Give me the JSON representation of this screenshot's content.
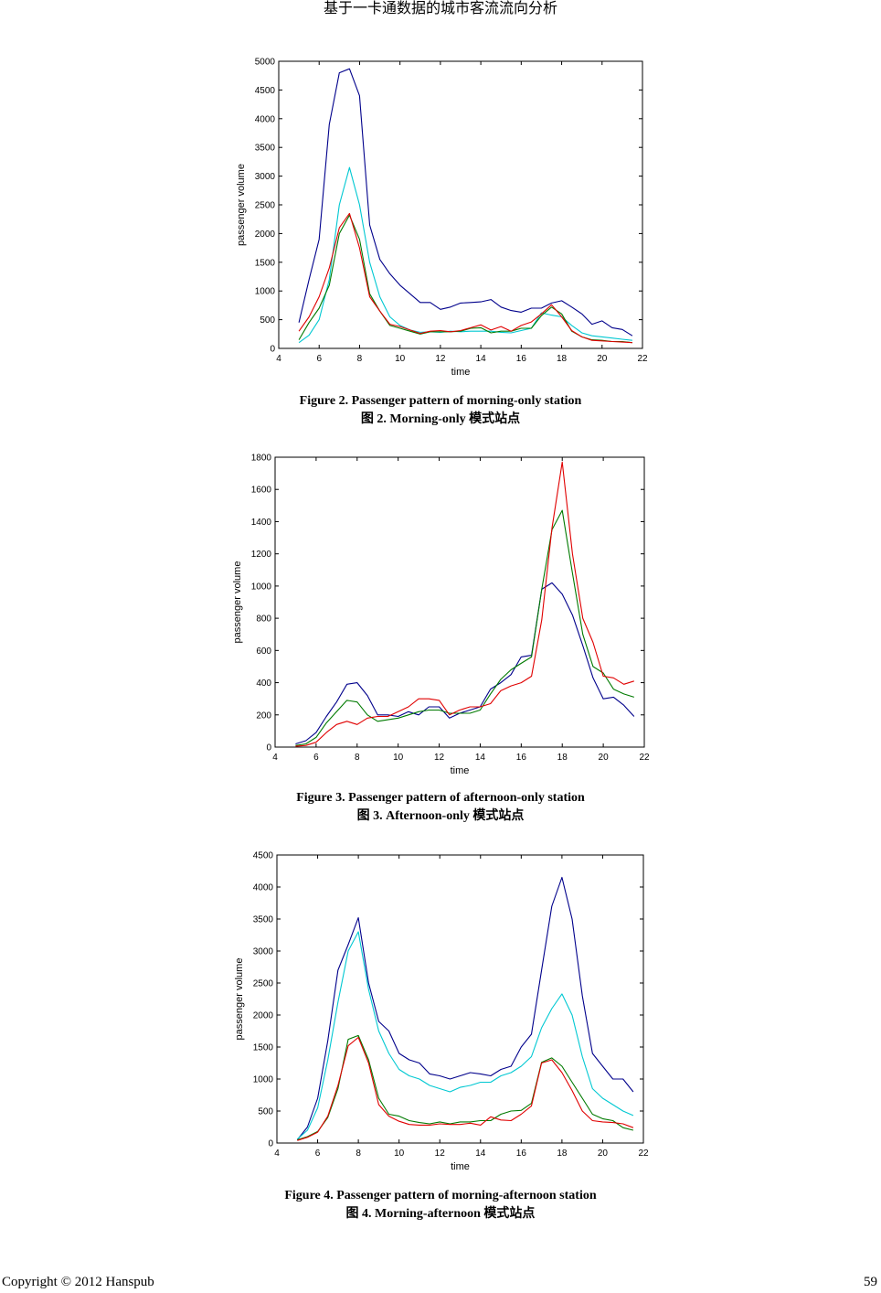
{
  "header": {
    "title": "基于一卡通数据的城市客流流向分析"
  },
  "figures": [
    {
      "caption_en": "Figure 2. Passenger pattern of morning-only station",
      "caption_zh": "图 2. Morning-only 模式站点"
    },
    {
      "caption_en": "Figure 3. Passenger pattern of afternoon-only station",
      "caption_zh": "图 3. Afternoon-only 模式站点"
    },
    {
      "caption_en": "Figure 4. Passenger pattern of morning-afternoon station",
      "caption_zh": "图 4. Morning-afternoon 模式站点"
    }
  ],
  "footer": {
    "copyright": "Copyright © 2012 Hanspub",
    "page_number": "59"
  },
  "colors": {
    "blue": "#00008b",
    "cyan": "#00c8d2",
    "green": "#007a00",
    "red": "#e00000"
  },
  "chart_data": [
    {
      "type": "line",
      "title": "",
      "xlabel": "time",
      "ylabel": "passenger volume",
      "xlim": [
        4,
        22
      ],
      "ylim": [
        0,
        5000
      ],
      "xticks": [
        4,
        6,
        8,
        10,
        12,
        14,
        16,
        18,
        20,
        22
      ],
      "yticks": [
        0,
        500,
        1000,
        1500,
        2000,
        2500,
        3000,
        3500,
        4000,
        4500,
        5000
      ],
      "x": [
        5,
        5.5,
        6,
        6.5,
        7,
        7.5,
        8,
        8.5,
        9,
        9.5,
        10,
        10.5,
        11,
        11.5,
        12,
        12.5,
        13,
        13.5,
        14,
        14.5,
        15,
        15.5,
        16,
        16.5,
        17,
        17.5,
        18,
        18.5,
        19,
        19.5,
        20,
        20.5,
        21,
        21.5
      ],
      "series": [
        {
          "name": "blue",
          "color": "#00008b",
          "values": [
            450,
            1200,
            1900,
            3900,
            4800,
            4870,
            4400,
            2150,
            1550,
            1300,
            1100,
            950,
            800,
            800,
            680,
            720,
            790,
            800,
            810,
            850,
            720,
            660,
            630,
            700,
            700,
            790,
            830,
            720,
            600,
            420,
            480,
            360,
            330,
            220
          ]
        },
        {
          "name": "cyan",
          "color": "#00c8d2",
          "values": [
            100,
            230,
            500,
            1200,
            2500,
            3150,
            2500,
            1500,
            900,
            550,
            400,
            320,
            280,
            290,
            280,
            300,
            290,
            300,
            300,
            300,
            280,
            270,
            310,
            350,
            620,
            580,
            550,
            400,
            270,
            220,
            200,
            180,
            160,
            140
          ]
        },
        {
          "name": "green",
          "color": "#007a00",
          "values": [
            150,
            450,
            700,
            1100,
            2000,
            2320,
            1900,
            950,
            650,
            400,
            350,
            300,
            250,
            290,
            290,
            290,
            300,
            350,
            360,
            270,
            300,
            300,
            350,
            350,
            570,
            720,
            600,
            300,
            200,
            150,
            140,
            120,
            120,
            100
          ]
        },
        {
          "name": "red",
          "color": "#e00000",
          "values": [
            300,
            550,
            900,
            1400,
            2100,
            2350,
            1750,
            900,
            650,
            420,
            380,
            320,
            260,
            300,
            310,
            290,
            310,
            360,
            410,
            320,
            380,
            300,
            400,
            460,
            600,
            760,
            550,
            310,
            200,
            140,
            130,
            120,
            110,
            100
          ]
        }
      ]
    },
    {
      "type": "line",
      "title": "",
      "xlabel": "time",
      "ylabel": "passenger volume",
      "xlim": [
        4,
        22
      ],
      "ylim": [
        0,
        1800
      ],
      "xticks": [
        4,
        6,
        8,
        10,
        12,
        14,
        16,
        18,
        20,
        22
      ],
      "yticks": [
        0,
        200,
        400,
        600,
        800,
        1000,
        1200,
        1400,
        1600,
        1800
      ],
      "x": [
        5,
        5.5,
        6,
        6.5,
        7,
        7.5,
        8,
        8.5,
        9,
        9.5,
        10,
        10.5,
        11,
        11.5,
        12,
        12.5,
        13,
        13.5,
        14,
        14.5,
        15,
        15.5,
        16,
        16.5,
        17,
        17.5,
        18,
        18.5,
        19,
        19.5,
        20,
        20.5,
        21,
        21.5
      ],
      "series": [
        {
          "name": "blue",
          "color": "#00008b",
          "values": [
            20,
            40,
            90,
            190,
            280,
            390,
            400,
            320,
            200,
            200,
            190,
            220,
            200,
            250,
            250,
            180,
            210,
            230,
            250,
            360,
            400,
            450,
            560,
            570,
            980,
            1020,
            950,
            820,
            630,
            430,
            300,
            310,
            260,
            190
          ]
        },
        {
          "name": "green",
          "color": "#007a00",
          "values": [
            10,
            20,
            60,
            150,
            220,
            290,
            280,
            200,
            160,
            170,
            180,
            200,
            220,
            230,
            230,
            210,
            210,
            210,
            230,
            330,
            420,
            480,
            520,
            560,
            980,
            1350,
            1470,
            1080,
            700,
            500,
            460,
            360,
            330,
            310
          ]
        },
        {
          "name": "red",
          "color": "#e00000",
          "values": [
            5,
            10,
            30,
            90,
            140,
            160,
            140,
            180,
            190,
            190,
            220,
            250,
            300,
            300,
            290,
            200,
            230,
            250,
            250,
            270,
            350,
            380,
            400,
            440,
            790,
            1360,
            1770,
            1200,
            800,
            650,
            440,
            430,
            390,
            410
          ]
        }
      ]
    },
    {
      "type": "line",
      "title": "",
      "xlabel": "time",
      "ylabel": "passenger volume",
      "xlim": [
        4,
        22
      ],
      "ylim": [
        0,
        4500
      ],
      "xticks": [
        4,
        6,
        8,
        10,
        12,
        14,
        16,
        18,
        20,
        22
      ],
      "yticks": [
        0,
        500,
        1000,
        1500,
        2000,
        2500,
        3000,
        3500,
        4000,
        4500
      ],
      "x": [
        5,
        5.5,
        6,
        6.5,
        7,
        7.5,
        8,
        8.5,
        9,
        9.5,
        10,
        10.5,
        11,
        11.5,
        12,
        12.5,
        13,
        13.5,
        14,
        14.5,
        15,
        15.5,
        16,
        16.5,
        17,
        17.5,
        18,
        18.5,
        19,
        19.5,
        20,
        20.5,
        21,
        21.5
      ],
      "series": [
        {
          "name": "blue",
          "color": "#00008b",
          "values": [
            50,
            250,
            700,
            1600,
            2700,
            3100,
            3520,
            2500,
            1900,
            1750,
            1400,
            1300,
            1250,
            1080,
            1050,
            1000,
            1050,
            1100,
            1080,
            1050,
            1150,
            1200,
            1500,
            1700,
            2700,
            3700,
            4150,
            3500,
            2300,
            1400,
            1200,
            1000,
            1000,
            800
          ]
        },
        {
          "name": "cyan",
          "color": "#00c8d2",
          "values": [
            60,
            200,
            550,
            1300,
            2200,
            3000,
            3300,
            2400,
            1750,
            1400,
            1150,
            1050,
            1000,
            900,
            850,
            800,
            870,
            900,
            950,
            950,
            1050,
            1100,
            1200,
            1350,
            1800,
            2100,
            2330,
            2000,
            1350,
            850,
            700,
            600,
            500,
            430
          ]
        },
        {
          "name": "green",
          "color": "#007a00",
          "values": [
            50,
            100,
            180,
            400,
            850,
            1620,
            1680,
            1300,
            700,
            450,
            420,
            350,
            320,
            300,
            330,
            300,
            330,
            330,
            350,
            350,
            450,
            500,
            510,
            620,
            1260,
            1330,
            1200,
            950,
            700,
            450,
            380,
            350,
            240,
            200
          ]
        },
        {
          "name": "red",
          "color": "#e00000",
          "values": [
            40,
            90,
            170,
            420,
            900,
            1520,
            1650,
            1250,
            600,
            420,
            340,
            290,
            280,
            280,
            300,
            290,
            290,
            310,
            280,
            410,
            360,
            350,
            450,
            580,
            1250,
            1300,
            1100,
            820,
            500,
            350,
            330,
            320,
            300,
            240
          ]
        }
      ]
    }
  ]
}
